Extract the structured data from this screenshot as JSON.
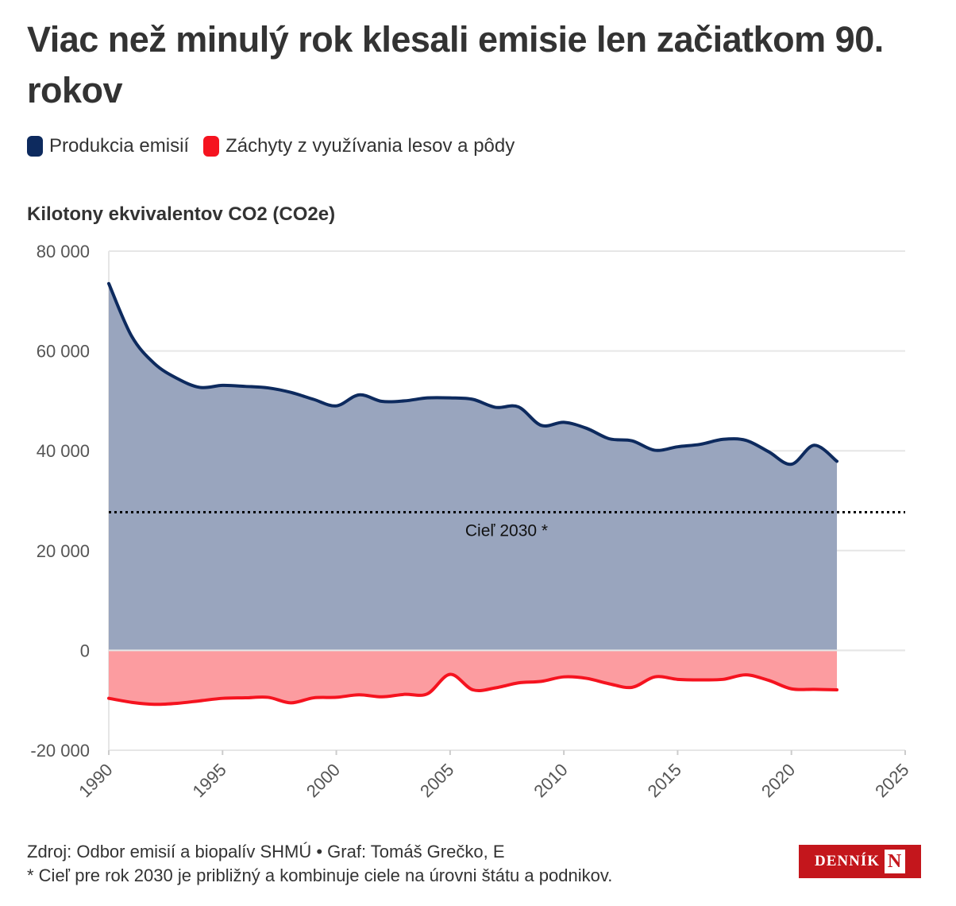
{
  "title": "Viac než minulý rok klesali emisie len začiatkom 90. rokov",
  "legend": [
    {
      "label": "Produkcia emisií",
      "color": "#0d2a5e"
    },
    {
      "label": "Záchyty z využívania lesov a pôdy",
      "color": "#f5131f"
    }
  ],
  "unit_label": "Kilotony ekvivalentov CO2 (CO2e)",
  "footer": {
    "source": "Zdroj: Odbor emisií a biopalív SHMÚ • Graf: Tomáš Grečko, E",
    "note": "* Cieľ pre rok 2030 je približný a kombinuje ciele na úrovni štátu a podnikov."
  },
  "logo": {
    "text": "DENNÍK",
    "mark": "N"
  },
  "colors": {
    "emissions_line": "#0d2a5e",
    "emissions_fill": "#99a5be",
    "sinks_line": "#f5131f",
    "sinks_fill": "#fc9ca0",
    "grid": "#e6e6e6",
    "target_line": "#000000"
  },
  "chart_data": {
    "type": "area",
    "x": [
      1990,
      1991,
      1992,
      1993,
      1994,
      1995,
      1996,
      1997,
      1998,
      1999,
      2000,
      2001,
      2002,
      2003,
      2004,
      2005,
      2006,
      2007,
      2008,
      2009,
      2010,
      2011,
      2012,
      2013,
      2014,
      2015,
      2016,
      2017,
      2018,
      2019,
      2020,
      2021,
      2022
    ],
    "series": [
      {
        "name": "Produkcia emisií",
        "values": [
          73500,
          63000,
          57500,
          54500,
          52700,
          53100,
          52900,
          52600,
          51700,
          50300,
          49000,
          51200,
          49900,
          50000,
          50600,
          50600,
          50300,
          48700,
          48800,
          45100,
          45700,
          44500,
          42400,
          42000,
          40100,
          40800,
          41300,
          42300,
          42100,
          39800,
          37300,
          41100,
          37900
        ]
      },
      {
        "name": "Záchyty z využívania lesov a pôdy",
        "values": [
          -9600,
          -10400,
          -10800,
          -10600,
          -10100,
          -9600,
          -9500,
          -9400,
          -10500,
          -9500,
          -9400,
          -8900,
          -9300,
          -8800,
          -8700,
          -4800,
          -7900,
          -7500,
          -6500,
          -6200,
          -5300,
          -5600,
          -6700,
          -7400,
          -5300,
          -5800,
          -5900,
          -5800,
          -4900,
          -6000,
          -7700,
          -7800,
          -7900
        ]
      }
    ],
    "target": {
      "label": "Cieľ 2030 *",
      "value": 27700
    },
    "ylim": [
      -20000,
      80000
    ],
    "yticks": [
      -20000,
      0,
      20000,
      40000,
      60000,
      80000
    ],
    "ytick_labels": [
      "-20 000",
      "0",
      "20 000",
      "40 000",
      "60 000",
      "80 000"
    ],
    "xlim": [
      1990,
      2025
    ],
    "xticks": [
      1990,
      1995,
      2000,
      2005,
      2010,
      2015,
      2020,
      2025
    ],
    "grid": true,
    "legend_position": "top-left"
  }
}
